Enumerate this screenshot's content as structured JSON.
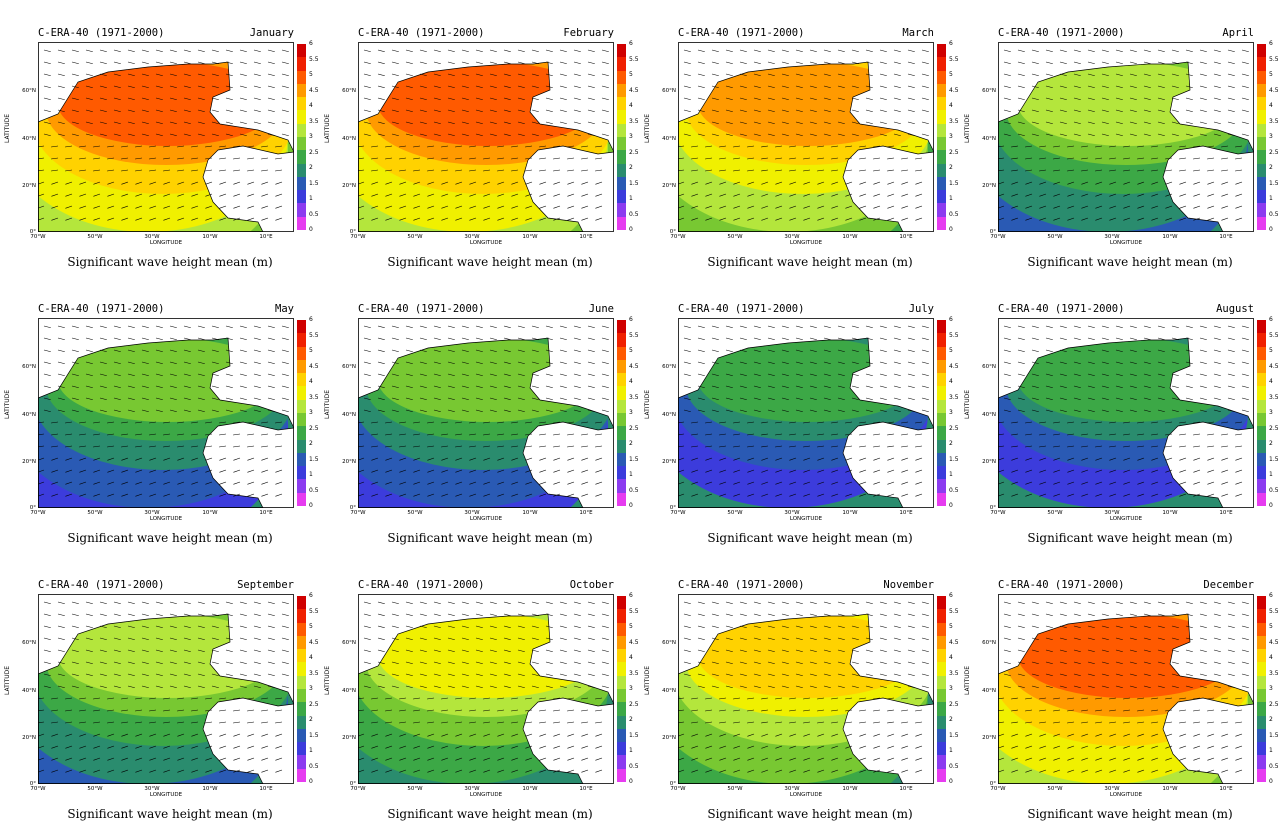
{
  "figure": {
    "title_prefix": "C-ERA-40 (1971-2000)",
    "caption": "Significant wave height mean (m)",
    "xlabel": "LONGITUDE",
    "ylabel": "LATITUDE",
    "x_ticks": [
      "70°W",
      "50°W",
      "30°W",
      "10°W",
      "10°E"
    ],
    "y_ticks": [
      "60°N",
      "40°N",
      "20°N",
      "0°"
    ],
    "colorbar_ticks": [
      "6",
      "5.5",
      "5",
      "4.5",
      "4",
      "3.5",
      "3",
      "2.5",
      "2",
      "1.5",
      "1",
      "0.5",
      "0"
    ],
    "colorbar_colors": [
      "#d00000",
      "#f02000",
      "#ff5a00",
      "#ff9a00",
      "#ffd200",
      "#f0f000",
      "#b4e63c",
      "#78c832",
      "#3ca846",
      "#2a8c6e",
      "#2a5ab4",
      "#3c3cdc",
      "#8c3cf0",
      "#e63cf0"
    ]
  },
  "months": [
    {
      "name": "January",
      "max_level": 5.5
    },
    {
      "name": "February",
      "max_level": 5.5
    },
    {
      "name": "March",
      "max_level": 5.0
    },
    {
      "name": "April",
      "max_level": 3.5
    },
    {
      "name": "May",
      "max_level": 3.0
    },
    {
      "name": "June",
      "max_level": 3.0
    },
    {
      "name": "July",
      "max_level": 2.5
    },
    {
      "name": "August",
      "max_level": 2.5
    },
    {
      "name": "September",
      "max_level": 3.5
    },
    {
      "name": "October",
      "max_level": 4.0
    },
    {
      "name": "November",
      "max_level": 4.5
    },
    {
      "name": "December",
      "max_level": 5.5
    }
  ]
}
